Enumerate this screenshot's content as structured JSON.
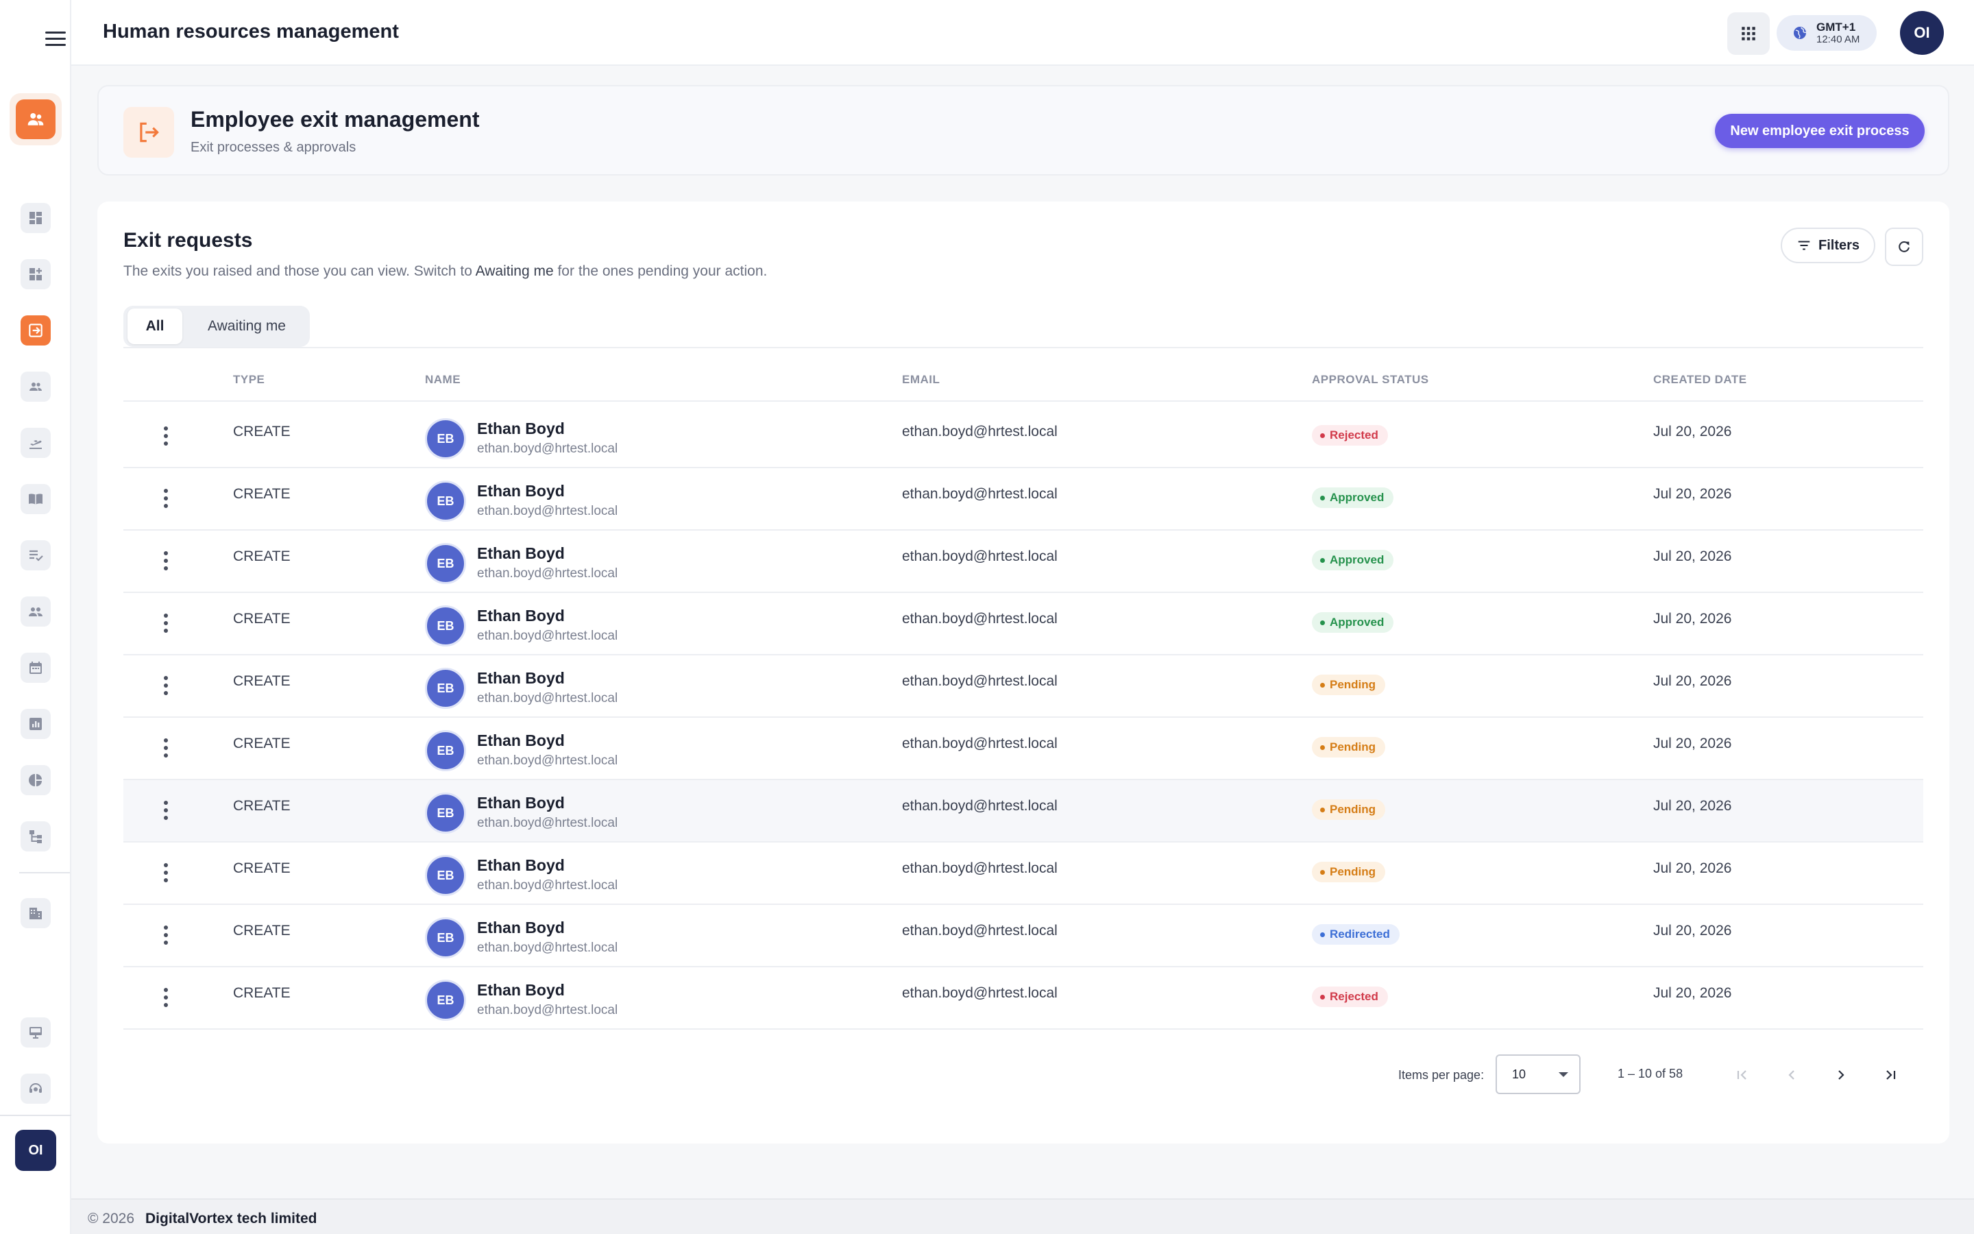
{
  "app": {
    "title": "Human resources management"
  },
  "topbar": {
    "timezone": "GMT+1",
    "time": "12:40 AM",
    "user_initials": "OI"
  },
  "sidebar": {
    "user_initials": "OI",
    "items": [
      {
        "icon": "dashboard-icon",
        "active": false
      },
      {
        "icon": "add-widget-icon",
        "active": false
      },
      {
        "icon": "exit-door-icon",
        "active": true
      },
      {
        "icon": "people-icon",
        "active": false
      },
      {
        "icon": "flight-takeoff-icon",
        "active": false
      },
      {
        "icon": "book-icon",
        "active": false
      },
      {
        "icon": "checklist-icon",
        "active": false
      },
      {
        "icon": "group-icon",
        "active": false
      },
      {
        "icon": "calendar-icon",
        "active": false
      },
      {
        "icon": "bar-chart-icon",
        "active": false
      },
      {
        "icon": "pie-chart-icon",
        "active": false
      },
      {
        "icon": "org-tree-icon",
        "active": false
      },
      {
        "icon": "building-icon",
        "active": false
      },
      {
        "icon": "desktop-icon",
        "active": false
      },
      {
        "icon": "support-agent-icon",
        "active": false
      }
    ]
  },
  "header": {
    "title": "Employee exit management",
    "subtitle": "Exit processes & approvals",
    "primary_button": "New employee exit process"
  },
  "section": {
    "title": "Exit requests",
    "description_before": "The exits you raised and those you can view. Switch to ",
    "description_highlight": "Awaiting me",
    "description_after": " for the ones pending your action.",
    "filters_label": "Filters",
    "tabs": [
      {
        "label": "All",
        "active": true
      },
      {
        "label": "Awaiting me",
        "active": false
      }
    ]
  },
  "table": {
    "columns": [
      "TYPE",
      "NAME",
      "EMAIL",
      "APPROVAL STATUS",
      "CREATED DATE"
    ],
    "rows": [
      {
        "type": "CREATE",
        "initials": "EB",
        "name": "Ethan Boyd",
        "sub_email": "ethan.boyd@hrtest.local",
        "email": "ethan.boyd@hrtest.local",
        "status": "Rejected",
        "status_kind": "rejected",
        "date": "Jul 20, 2026"
      },
      {
        "type": "CREATE",
        "initials": "EB",
        "name": "Ethan Boyd",
        "sub_email": "ethan.boyd@hrtest.local",
        "email": "ethan.boyd@hrtest.local",
        "status": "Approved",
        "status_kind": "approved",
        "date": "Jul 20, 2026"
      },
      {
        "type": "CREATE",
        "initials": "EB",
        "name": "Ethan Boyd",
        "sub_email": "ethan.boyd@hrtest.local",
        "email": "ethan.boyd@hrtest.local",
        "status": "Approved",
        "status_kind": "approved",
        "date": "Jul 20, 2026"
      },
      {
        "type": "CREATE",
        "initials": "EB",
        "name": "Ethan Boyd",
        "sub_email": "ethan.boyd@hrtest.local",
        "email": "ethan.boyd@hrtest.local",
        "status": "Approved",
        "status_kind": "approved",
        "date": "Jul 20, 2026"
      },
      {
        "type": "CREATE",
        "initials": "EB",
        "name": "Ethan Boyd",
        "sub_email": "ethan.boyd@hrtest.local",
        "email": "ethan.boyd@hrtest.local",
        "status": "Pending",
        "status_kind": "pending",
        "date": "Jul 20, 2026"
      },
      {
        "type": "CREATE",
        "initials": "EB",
        "name": "Ethan Boyd",
        "sub_email": "ethan.boyd@hrtest.local",
        "email": "ethan.boyd@hrtest.local",
        "status": "Pending",
        "status_kind": "pending",
        "date": "Jul 20, 2026"
      },
      {
        "type": "CREATE",
        "initials": "EB",
        "name": "Ethan Boyd",
        "sub_email": "ethan.boyd@hrtest.local",
        "email": "ethan.boyd@hrtest.local",
        "status": "Pending",
        "status_kind": "pending",
        "date": "Jul 20, 2026"
      },
      {
        "type": "CREATE",
        "initials": "EB",
        "name": "Ethan Boyd",
        "sub_email": "ethan.boyd@hrtest.local",
        "email": "ethan.boyd@hrtest.local",
        "status": "Pending",
        "status_kind": "pending",
        "date": "Jul 20, 2026"
      },
      {
        "type": "CREATE",
        "initials": "EB",
        "name": "Ethan Boyd",
        "sub_email": "ethan.boyd@hrtest.local",
        "email": "ethan.boyd@hrtest.local",
        "status": "Redirected",
        "status_kind": "redirected",
        "date": "Jul 20, 2026"
      },
      {
        "type": "CREATE",
        "initials": "EB",
        "name": "Ethan Boyd",
        "sub_email": "ethan.boyd@hrtest.local",
        "email": "ethan.boyd@hrtest.local",
        "status": "Rejected",
        "status_kind": "rejected",
        "date": "Jul 20, 2026"
      }
    ]
  },
  "pagination": {
    "items_per_page_label": "Items per page:",
    "items_per_page": "10",
    "range": "1 – 10 of 58"
  },
  "footer": {
    "copyright": "© 2026",
    "company": "DigitalVortex tech limited"
  },
  "colors": {
    "accent": "#f3793b",
    "primary": "#6b5de6",
    "avatar": "#5266cc",
    "navy": "#1f2a5c"
  }
}
